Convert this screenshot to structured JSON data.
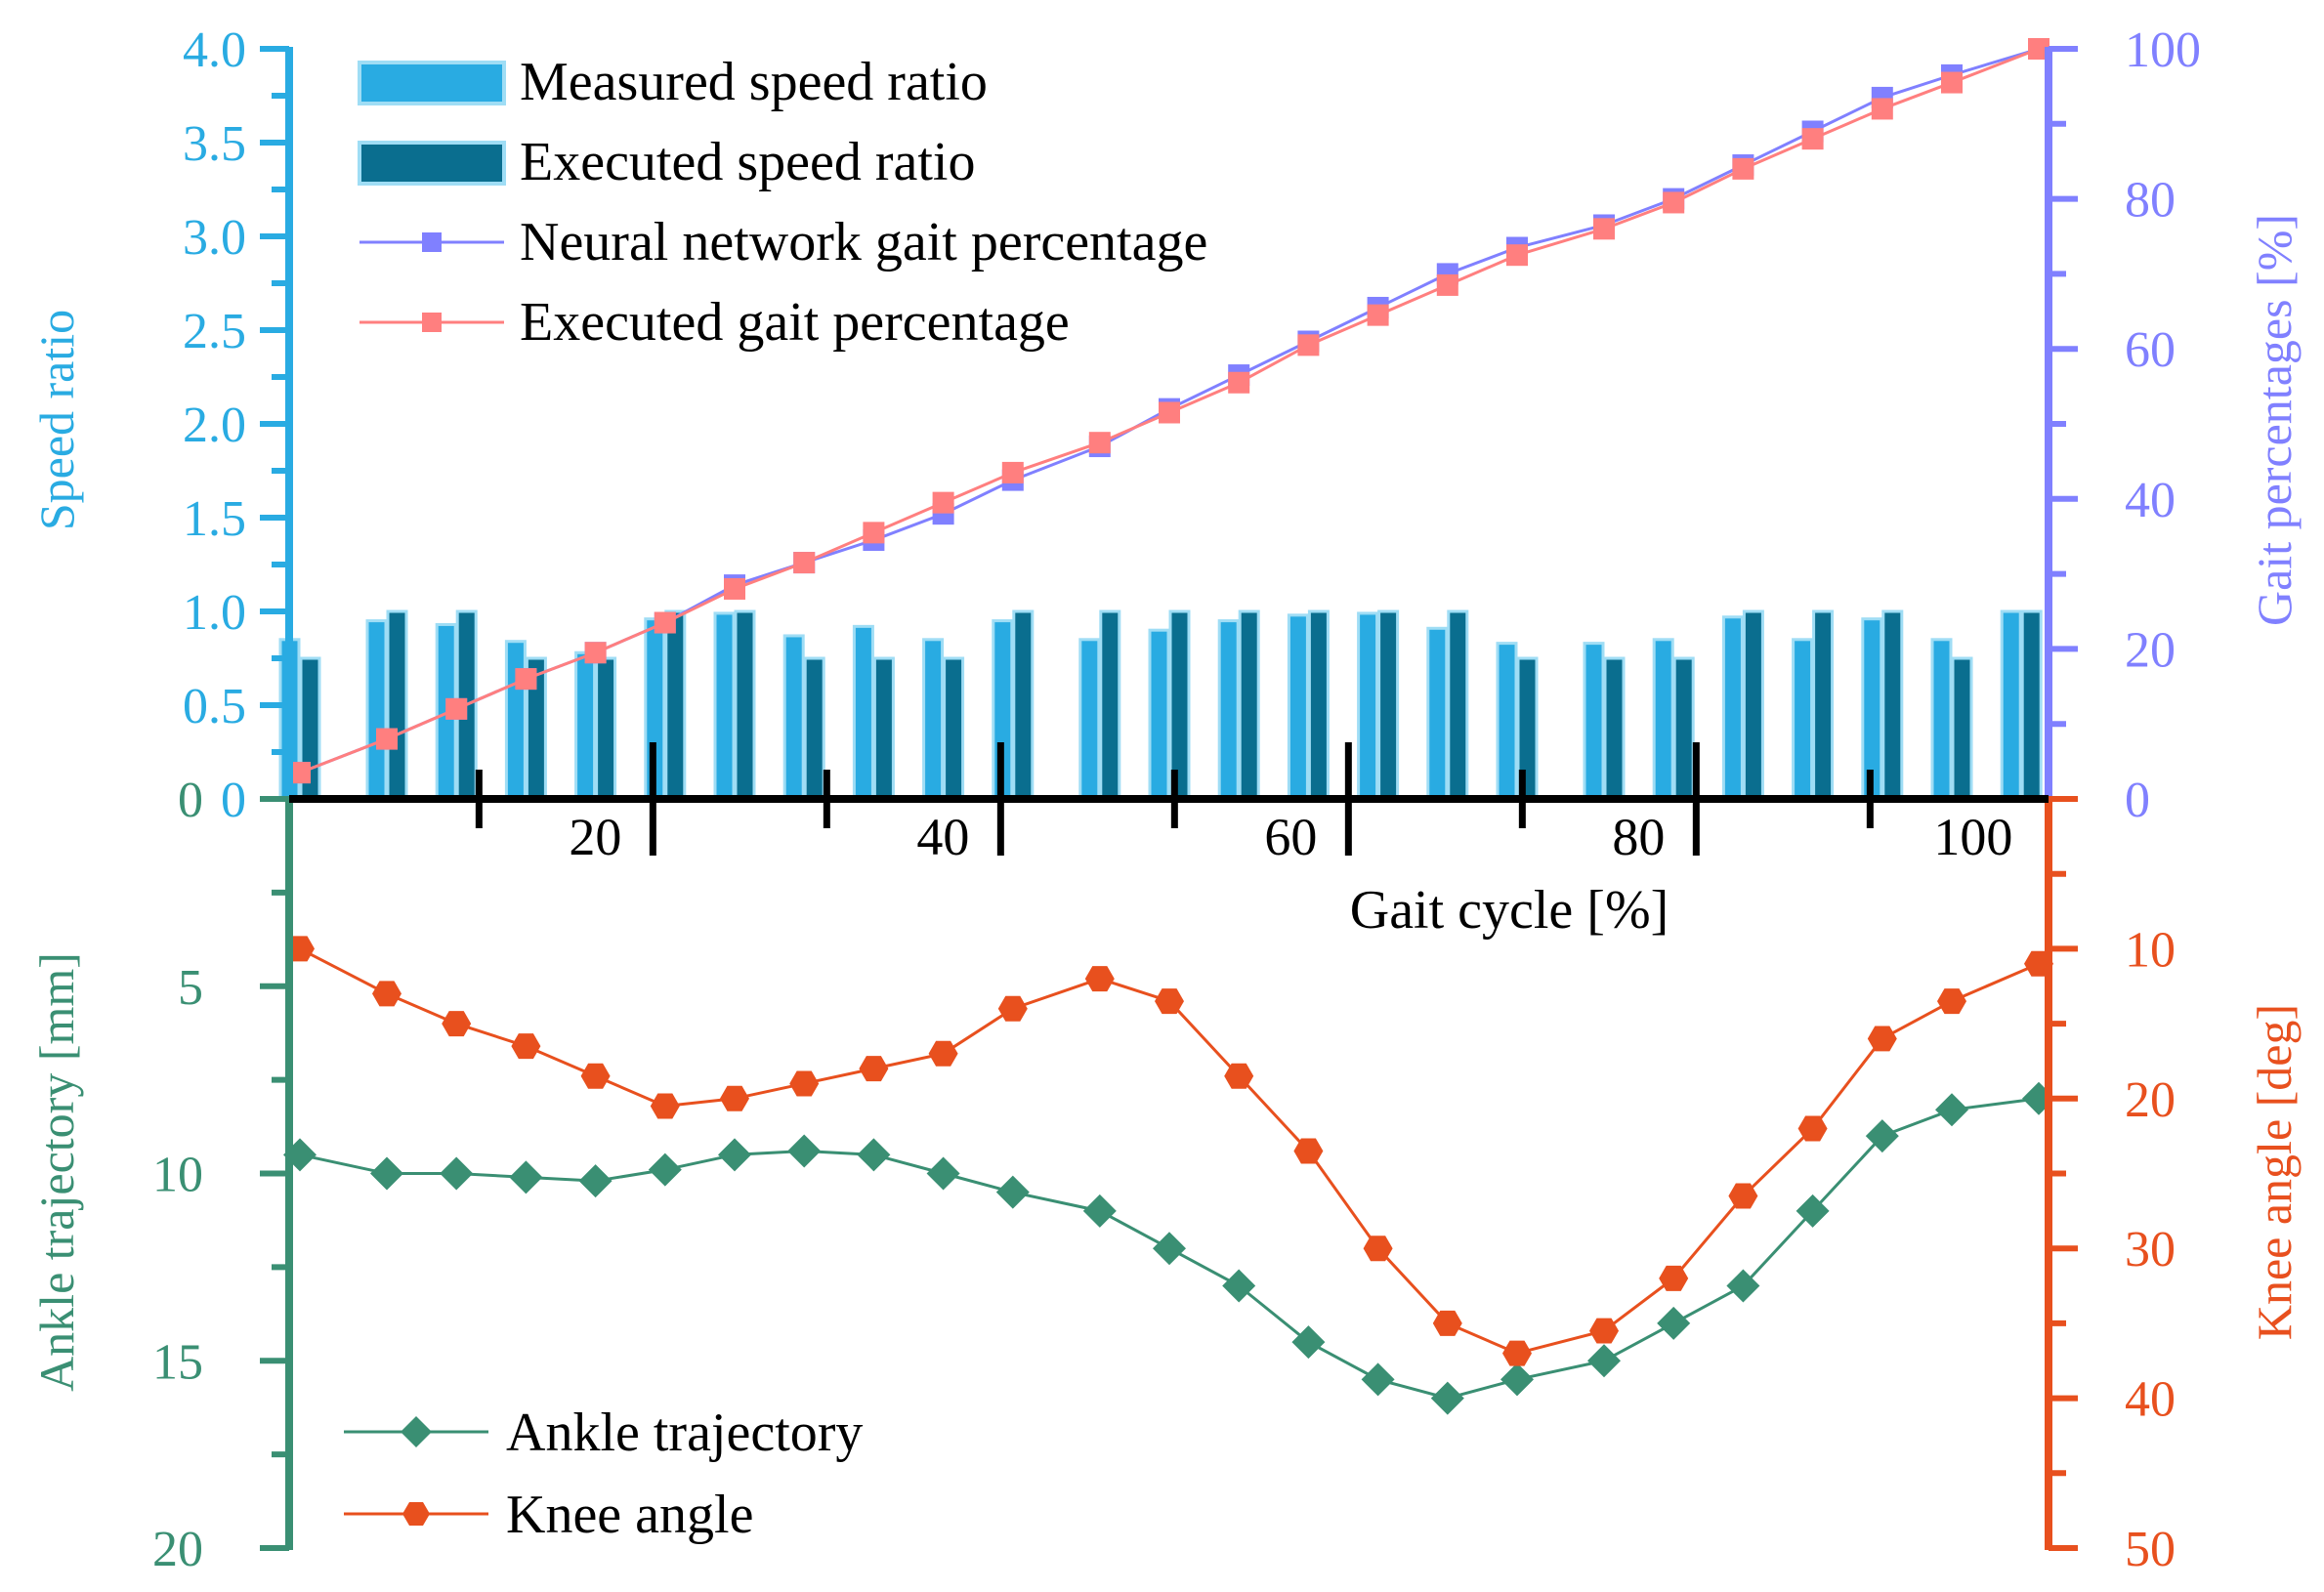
{
  "chart_data": [
    {
      "type": "bar+line",
      "panel": "top",
      "xlabel": "Gait cycle [%]",
      "xlim": [
        0,
        100
      ],
      "xticks": [
        20,
        40,
        60,
        80,
        100
      ],
      "left_axis": {
        "label": "Speed ratio",
        "ylim": [
          0,
          4.0
        ],
        "ticks": [
          "0",
          "0.5",
          "1.0",
          "1.5",
          "2.0",
          "2.5",
          "3.0",
          "3.5",
          "4.0"
        ],
        "color": "#29ABE2"
      },
      "right_axis": {
        "label": "Gait percentages [%]",
        "ylim": [
          0,
          100
        ],
        "ticks": [
          "0",
          "20",
          "40",
          "60",
          "80",
          "100"
        ],
        "color": "#8080FF"
      },
      "bar_x": [
        0,
        5,
        9,
        13,
        17,
        21,
        25,
        29,
        33,
        37,
        41,
        46,
        50,
        54,
        58,
        62,
        66,
        70,
        75,
        79,
        83,
        87,
        91,
        95,
        99
      ],
      "series": [
        {
          "name": "Measured speed ratio",
          "kind": "bar",
          "axis": "left",
          "color": "#29ABE2",
          "values": [
            0.85,
            0.95,
            0.93,
            0.84,
            0.78,
            0.96,
            0.99,
            0.87,
            0.92,
            0.85,
            0.95,
            0.85,
            0.9,
            0.95,
            0.98,
            0.99,
            0.91,
            0.83,
            0.83,
            0.85,
            0.97,
            0.85,
            0.96,
            0.85,
            1.0
          ]
        },
        {
          "name": "Executed speed ratio",
          "kind": "bar",
          "axis": "left",
          "color": "#0A6E8F",
          "values": [
            0.75,
            1.0,
            1.0,
            0.75,
            0.75,
            1.0,
            1.0,
            0.75,
            0.75,
            0.75,
            1.0,
            1.0,
            1.0,
            1.0,
            1.0,
            1.0,
            1.0,
            0.75,
            0.75,
            0.75,
            1.0,
            1.0,
            1.0,
            0.75,
            1.0
          ]
        },
        {
          "name": "Neural network gait percentage",
          "kind": "line",
          "axis": "right",
          "color": "#8080FF",
          "marker": "square",
          "x": [
            0,
            5,
            9,
            13,
            17,
            21,
            25,
            29,
            33,
            37,
            41,
            46,
            50,
            54,
            58,
            62,
            66,
            70,
            75,
            79,
            83,
            87,
            91,
            95,
            100
          ],
          "y": [
            3.5,
            8,
            12,
            16,
            19.5,
            23.5,
            28.5,
            31.5,
            34.5,
            38,
            42.5,
            47,
            52,
            56.5,
            61,
            65.5,
            70,
            73.5,
            76.5,
            80,
            84.5,
            89,
            93.5,
            96.5,
            100
          ]
        },
        {
          "name": "Executed gait percentage",
          "kind": "line",
          "axis": "right",
          "color": "#FF7F7F",
          "marker": "square",
          "x": [
            0,
            5,
            9,
            13,
            17,
            21,
            25,
            29,
            33,
            37,
            41,
            46,
            50,
            54,
            58,
            62,
            66,
            70,
            75,
            79,
            83,
            87,
            91,
            95,
            100
          ],
          "y": [
            3.5,
            8,
            12,
            16,
            19.5,
            23.5,
            28,
            31.5,
            35.5,
            39.5,
            43.5,
            47.5,
            51.5,
            55.5,
            60.5,
            64.5,
            68.5,
            72.5,
            76,
            79.5,
            84,
            88,
            92,
            95.5,
            100
          ]
        }
      ]
    },
    {
      "type": "line",
      "panel": "bottom",
      "left_axis": {
        "label": "Ankle trajectory [mm]",
        "ylim": [
          0,
          20
        ],
        "inverted": true,
        "ticks": [
          "5",
          "10",
          "15",
          "20"
        ],
        "color": "#3A8F73"
      },
      "right_axis": {
        "label": "Knee angle [deg]",
        "ylim": [
          0,
          50
        ],
        "inverted": true,
        "ticks": [
          "10",
          "20",
          "30",
          "40",
          "50"
        ],
        "color": "#E8501E"
      },
      "x": [
        0,
        5,
        9,
        13,
        17,
        21,
        25,
        29,
        33,
        37,
        41,
        46,
        50,
        54,
        58,
        62,
        66,
        70,
        75,
        79,
        83,
        87,
        91,
        95,
        100
      ],
      "series": [
        {
          "name": "Ankle trajectory",
          "axis": "left",
          "color": "#3A8F73",
          "marker": "diamond",
          "y": [
            9.5,
            10,
            10,
            10.1,
            10.2,
            9.9,
            9.5,
            9.4,
            9.5,
            10,
            10.5,
            11,
            12,
            13,
            14.5,
            15.5,
            16,
            15.5,
            15,
            14,
            13,
            11,
            9,
            8.3,
            8
          ]
        },
        {
          "name": "Knee angle",
          "axis": "right",
          "color": "#E8501E",
          "marker": "hexagon",
          "y": [
            10,
            13,
            15,
            16.5,
            18.5,
            20.5,
            20,
            19,
            18,
            17,
            14,
            12,
            13.5,
            18.5,
            23.5,
            30,
            35,
            37,
            35.5,
            32,
            26.5,
            22,
            16,
            13.5,
            11
          ]
        }
      ]
    }
  ]
}
